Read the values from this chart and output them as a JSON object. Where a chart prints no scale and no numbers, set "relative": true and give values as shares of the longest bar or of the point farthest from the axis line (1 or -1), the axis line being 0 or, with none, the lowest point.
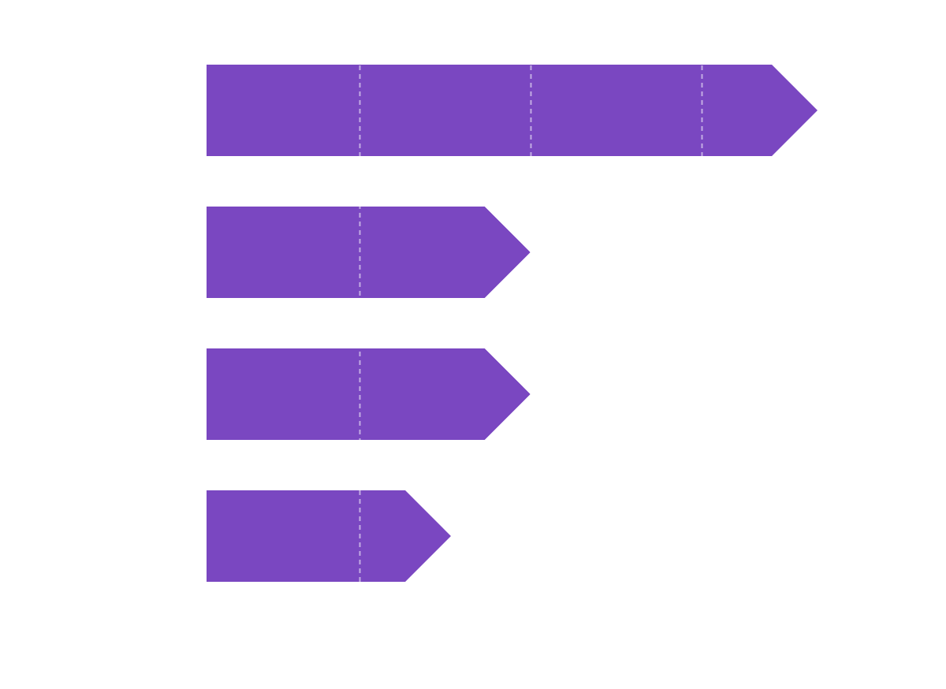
{
  "chart_data": {
    "type": "bar",
    "orientation": "horizontal",
    "relative": true,
    "categories": [
      null,
      null,
      null,
      null
    ],
    "values": [
      1,
      0.53,
      0.53,
      0.4
    ],
    "color": "#7a47c1",
    "ref_lines": [
      {
        "axis": "x",
        "value": 0.25,
        "color": "#ffffff",
        "line_style": "dashed"
      },
      {
        "axis": "x",
        "value": 0.53,
        "color": "#ffffff",
        "line_style": "dashed"
      },
      {
        "axis": "x",
        "value": 0.81,
        "color": "#ffffff",
        "line_style": "dashed"
      }
    ]
  }
}
